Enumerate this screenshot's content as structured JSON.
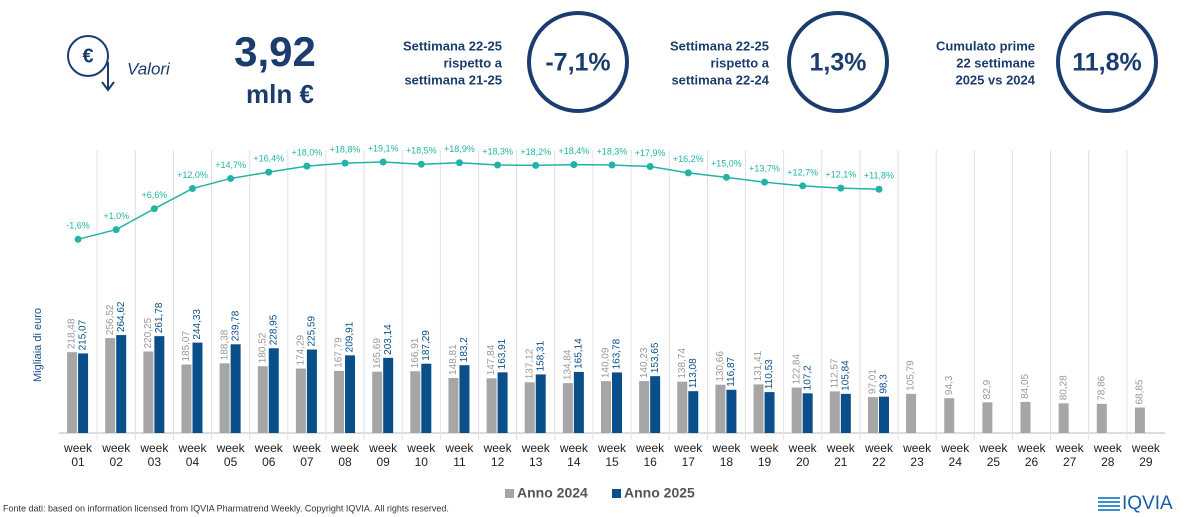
{
  "header": {
    "icon": "€",
    "label": "Valori",
    "total": "3,92",
    "unit": "mln €",
    "kpis": [
      {
        "label_lines": [
          "Settimana 22-25",
          "rispetto a",
          "settimana 21-25"
        ],
        "value": "-7,1%"
      },
      {
        "label_lines": [
          "Settimana 22-25",
          "rispetto a",
          "settimana 22-24"
        ],
        "value": "1,3%"
      },
      {
        "label_lines": [
          "Cumulato prime",
          "22 settimane",
          "2025 vs 2024"
        ],
        "value": "11,8%"
      }
    ]
  },
  "chart_data": {
    "type": "bar",
    "ylabel": "Migliaia di euro",
    "categories": [
      "week 01",
      "week 02",
      "week 03",
      "week 04",
      "week 05",
      "week 06",
      "week 07",
      "week 08",
      "week 09",
      "week 10",
      "week 11",
      "week 12",
      "week 13",
      "week 14",
      "week 15",
      "week 16",
      "week 17",
      "week 18",
      "week 19",
      "week 20",
      "week 21",
      "week 22",
      "week 23",
      "week 24",
      "week 25",
      "week 26",
      "week 27",
      "week 28",
      "week 29"
    ],
    "ylim": [
      0,
      300
    ],
    "y2lim": [
      -5,
      25
    ],
    "series": [
      {
        "name": "Anno 2024",
        "color": "#a6a6a6",
        "values": [
          218.48,
          256.52,
          220.25,
          185.07,
          188.38,
          180.52,
          174.29,
          167.79,
          165.69,
          166.91,
          148.81,
          147.84,
          137.12,
          134.84,
          140.09,
          140.23,
          138.74,
          130.66,
          131.41,
          122.84,
          112.57,
          97.01,
          105.79,
          94.3,
          82.9,
          84.05,
          80.28,
          78.86,
          68.85
        ],
        "value_labels": [
          "218,48",
          "256,52",
          "220,25",
          "185,07",
          "188,38",
          "180,52",
          "174,29",
          "167,79",
          "165,69",
          "166,91",
          "148,81",
          "147,84",
          "137,12",
          "134,84",
          "140,09",
          "140,23",
          "138,74",
          "130,66",
          "131,41",
          "122,84",
          "112,57",
          "97,01",
          "105,79",
          "94,3",
          "82,9",
          "84,05",
          "80,28",
          "78,86",
          "68,85"
        ]
      },
      {
        "name": "Anno 2025",
        "color": "#0b4f8a",
        "values": [
          215.07,
          264.62,
          261.78,
          244.33,
          239.78,
          228.95,
          225.59,
          209.91,
          203.14,
          187.29,
          183.2,
          163.91,
          158.31,
          165.14,
          163.78,
          153.65,
          113.08,
          116.87,
          110.53,
          107.2,
          105.84,
          98.3,
          null,
          null,
          null,
          null,
          null,
          null,
          null
        ],
        "value_labels": [
          "215,07",
          "264,62",
          "261,78",
          "244,33",
          "239,78",
          "228,95",
          "225,59",
          "209,91",
          "203,14",
          "187,29",
          "183,2",
          "163,91",
          "158,31",
          "165,14",
          "163,78",
          "153,65",
          "113,08",
          "116,87",
          "110,53",
          "107,2",
          "105,84",
          "98,3",
          null,
          null,
          null,
          null,
          null,
          null,
          null
        ]
      }
    ],
    "growth": {
      "axis": "y2",
      "color": "#22b3a4",
      "values": [
        -1.6,
        1.0,
        6.6,
        12.0,
        14.7,
        16.4,
        18.0,
        18.8,
        19.1,
        18.5,
        18.9,
        18.3,
        18.2,
        18.4,
        18.3,
        17.9,
        16.2,
        15.0,
        13.7,
        12.7,
        12.1,
        11.8,
        null,
        null,
        null,
        null,
        null,
        null,
        null
      ],
      "value_labels": [
        "-1,6%",
        "+1,0%",
        "+6,6%",
        "+12,0%",
        "+14,7%",
        "+16,4%",
        "+18,0%",
        "+18,8%",
        "+19,1%",
        "+18,5%",
        "+18,9%",
        "+18,3%",
        "+18,2%",
        "+18,4%",
        "+18,3%",
        "+17,9%",
        "+16,2%",
        "+15,0%",
        "+13,7%",
        "+12,7%",
        "+12,1%",
        "+11,8%",
        null,
        null,
        null,
        null,
        null,
        null,
        null
      ]
    }
  },
  "footer": {
    "source": "Fonte dati: based on information licensed from IQVIA Pharmatrend Weekly. Copyright IQVIA. All rights reserved.",
    "logo": "IQVIA"
  }
}
